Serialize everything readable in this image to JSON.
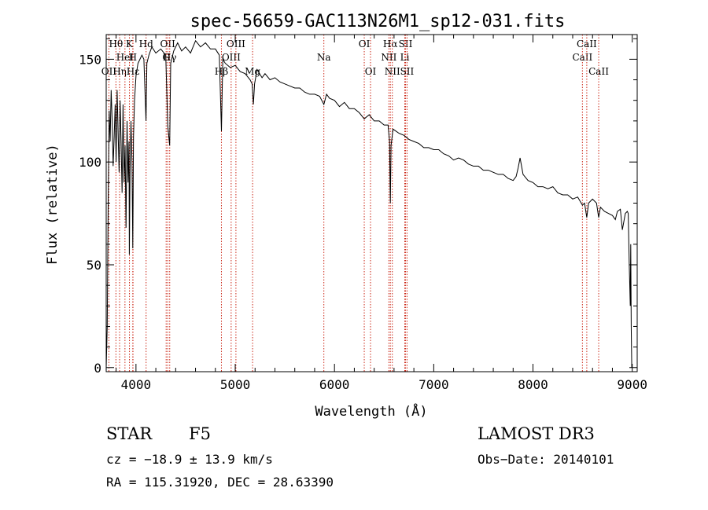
{
  "chart_data": {
    "type": "line",
    "title": "spec-56659-GAC113N26M1_sp12-031.fits",
    "xlabel": "Wavelength (Å)",
    "ylabel": "Flux (relative)",
    "xlim": [
      3700,
      9050
    ],
    "ylim": [
      -2,
      162
    ],
    "xticks": [
      4000,
      5000,
      6000,
      7000,
      8000,
      9000
    ],
    "yticks": [
      0,
      50,
      100,
      150
    ],
    "xtick_labels": [
      "4000",
      "5000",
      "6000",
      "7000",
      "8000",
      "9000"
    ],
    "ytick_labels": [
      "0",
      "50",
      "100",
      "150"
    ],
    "grid": false,
    "series": [
      {
        "name": "flux",
        "color": "#000000",
        "x": [
          3700,
          3710,
          3720,
          3730,
          3740,
          3750,
          3760,
          3770,
          3780,
          3790,
          3800,
          3810,
          3820,
          3830,
          3840,
          3850,
          3860,
          3870,
          3880,
          3890,
          3900,
          3910,
          3920,
          3930,
          3933,
          3940,
          3950,
          3960,
          3968,
          3975,
          3985,
          4000,
          4020,
          4040,
          4060,
          4080,
          4101,
          4110,
          4130,
          4160,
          4200,
          4250,
          4300,
          4320,
          4340,
          4350,
          4380,
          4420,
          4460,
          4500,
          4550,
          4600,
          4650,
          4700,
          4750,
          4800,
          4840,
          4861,
          4875,
          4900,
          4950,
          5000,
          5050,
          5100,
          5150,
          5170,
          5183,
          5195,
          5220,
          5270,
          5300,
          5350,
          5400,
          5450,
          5500,
          5550,
          5600,
          5650,
          5700,
          5750,
          5800,
          5850,
          5893,
          5920,
          5950,
          6000,
          6050,
          6100,
          6150,
          6200,
          6250,
          6300,
          6350,
          6400,
          6450,
          6500,
          6540,
          6555,
          6563,
          6570,
          6590,
          6620,
          6650,
          6700,
          6750,
          6800,
          6850,
          6900,
          6950,
          7000,
          7050,
          7100,
          7150,
          7200,
          7250,
          7300,
          7350,
          7400,
          7450,
          7500,
          7550,
          7600,
          7650,
          7700,
          7750,
          7800,
          7830,
          7850,
          7870,
          7900,
          7950,
          8000,
          8050,
          8100,
          8150,
          8200,
          8250,
          8300,
          8350,
          8400,
          8450,
          8498,
          8520,
          8542,
          8560,
          8600,
          8640,
          8662,
          8680,
          8720,
          8760,
          8800,
          8830,
          8850,
          8880,
          8900,
          8930,
          8950,
          8960,
          8970,
          8980,
          8985,
          8990,
          8995
        ],
        "y": [
          0,
          20,
          80,
          125,
          110,
          135,
          120,
          98,
          112,
          128,
          100,
          135,
          115,
          95,
          130,
          110,
          85,
          128,
          90,
          108,
          68,
          120,
          90,
          110,
          55,
          95,
          120,
          100,
          58,
          112,
          130,
          142,
          148,
          150,
          152,
          150,
          120,
          148,
          152,
          156,
          153,
          155,
          152,
          118,
          108,
          148,
          154,
          158,
          154,
          156,
          153,
          159,
          156,
          158,
          155,
          155,
          152,
          115,
          150,
          148,
          146,
          147,
          144,
          143,
          140,
          138,
          128,
          138,
          145,
          141,
          143,
          140,
          141,
          139,
          138,
          137,
          136,
          136,
          134,
          133,
          133,
          132,
          128,
          133,
          131,
          130,
          127,
          129,
          126,
          126,
          124,
          121,
          123,
          120,
          120,
          118,
          118,
          110,
          80,
          108,
          116,
          115,
          114,
          113,
          111,
          110,
          109,
          107,
          107,
          106,
          106,
          104,
          103,
          101,
          102,
          101,
          99,
          98,
          98,
          96,
          96,
          95,
          94,
          94,
          92,
          91,
          93,
          97,
          102,
          94,
          91,
          90,
          88,
          88,
          87,
          88,
          85,
          84,
          84,
          82,
          83,
          79,
          80,
          73,
          80,
          82,
          80,
          73,
          78,
          76,
          75,
          74,
          72,
          76,
          77,
          67,
          75,
          76,
          75,
          50,
          30,
          60,
          20,
          0
        ]
      }
    ],
    "lines": [
      {
        "name": "OII",
        "wl": 3727,
        "label": "OII",
        "row": 2
      },
      {
        "name": "Hθ",
        "wl": 3798,
        "label": "Hθ",
        "row": 0
      },
      {
        "name": "Hη",
        "wl": 3835,
        "label": "Hη",
        "row": 2
      },
      {
        "name": "HeI",
        "wl": 3889,
        "label": "HeI",
        "row": 1
      },
      {
        "name": "K",
        "wl": 3934,
        "label": "K",
        "row": 0
      },
      {
        "name": "H",
        "wl": 3968,
        "label": "H",
        "row": 1
      },
      {
        "name": "Hε",
        "wl": 3970,
        "label": "Hε",
        "row": 2
      },
      {
        "name": "Hδ",
        "wl": 4102,
        "label": "Hd",
        "row": 0
      },
      {
        "name": "G",
        "wl": 4304,
        "label": "G",
        "row": 1
      },
      {
        "name": "OII2",
        "wl": 4320,
        "label": "OII",
        "row": 0
      },
      {
        "name": "Hγ",
        "wl": 4340,
        "label": "Hγ",
        "row": 1
      },
      {
        "name": "Hβ",
        "wl": 4861,
        "label": "Hβ",
        "row": 2
      },
      {
        "name": "OIII1",
        "wl": 4959,
        "label": "OIII",
        "row": 1
      },
      {
        "name": "OIII2",
        "wl": 5007,
        "label": "OIII",
        "row": 0
      },
      {
        "name": "Mg",
        "wl": 5175,
        "label": "Mg",
        "row": 2
      },
      {
        "name": "Na",
        "wl": 5893,
        "label": "Na",
        "row": 1
      },
      {
        "name": "OI1",
        "wl": 6300,
        "label": "OI",
        "row": 0
      },
      {
        "name": "OI2",
        "wl": 6363,
        "label": "OI",
        "row": 2
      },
      {
        "name": "NII1",
        "wl": 6548,
        "label": "NII",
        "row": 1
      },
      {
        "name": "Hα",
        "wl": 6563,
        "label": "Hα",
        "row": 0
      },
      {
        "name": "NII2",
        "wl": 6583,
        "label": "NII",
        "row": 2
      },
      {
        "name": "SII1",
        "wl": 6716,
        "label": "SII",
        "row": 0
      },
      {
        "name": "Li",
        "wl": 6708,
        "label": "Li",
        "row": 1
      },
      {
        "name": "SII2",
        "wl": 6731,
        "label": "SII",
        "row": 2
      },
      {
        "name": "CaII1",
        "wl": 8498,
        "label": "CaII",
        "row": 1
      },
      {
        "name": "CaII2",
        "wl": 8542,
        "label": "CaII",
        "row": 0
      },
      {
        "name": "CaII3",
        "wl": 8662,
        "label": "CaII",
        "row": 2
      }
    ]
  },
  "info": {
    "object_class": "STAR",
    "subclass": "F5",
    "survey": "LAMOST DR3",
    "redshift_text": "cz = −18.9 ± 13.9 km/s",
    "obs_date_text": "Obs−Date: 20140101",
    "coords_text": "RA = 115.31920, DEC =  28.63390"
  },
  "colors": {
    "line_marker": "#cc2a1a",
    "spectrum": "#000000",
    "axes": "#000000"
  }
}
